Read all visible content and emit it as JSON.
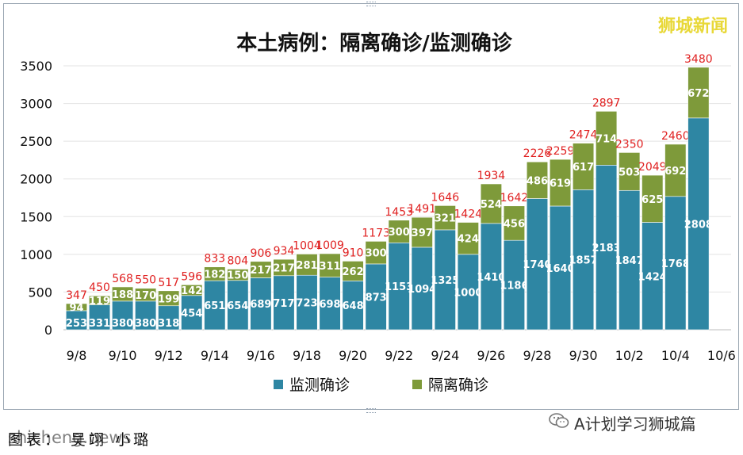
{
  "chart_data": {
    "type": "bar",
    "stacked": true,
    "title": "本土病例：隔离确诊/监测确诊",
    "categories": [
      "9/8",
      "9/9",
      "9/10",
      "9/11",
      "9/12",
      "9/13",
      "9/14",
      "9/15",
      "9/16",
      "9/17",
      "9/18",
      "9/19",
      "9/20",
      "9/21",
      "9/22",
      "9/23",
      "9/24",
      "9/25",
      "9/26",
      "9/27",
      "9/28",
      "9/29",
      "9/30",
      "10/1",
      "10/2",
      "10/3",
      "10/4",
      "10/5"
    ],
    "x_tick_labels": [
      "9/8",
      "9/10",
      "9/12",
      "9/14",
      "9/16",
      "9/18",
      "9/20",
      "9/22",
      "9/24",
      "9/26",
      "9/28",
      "9/30",
      "10/2",
      "10/4",
      "10/6"
    ],
    "series": [
      {
        "name": "监测确诊",
        "color": "#2e86a3",
        "values": [
          253,
          331,
          380,
          380,
          318,
          454,
          651,
          654,
          689,
          717,
          723,
          698,
          648,
          873,
          1153,
          1094,
          1325,
          1000,
          1410,
          1186,
          1740,
          1640,
          1857,
          2183,
          1847,
          1424,
          1768,
          2808
        ]
      },
      {
        "name": "隔离确诊",
        "color": "#7e9a3a",
        "values": [
          94,
          119,
          188,
          170,
          199,
          142,
          182,
          150,
          217,
          217,
          281,
          311,
          262,
          300,
          300,
          397,
          321,
          424,
          524,
          456,
          486,
          619,
          617,
          714,
          503,
          625,
          692,
          672
        ]
      }
    ],
    "totals": [
      347,
      450,
      568,
      550,
      517,
      596,
      833,
      804,
      906,
      934,
      1004,
      1009,
      910,
      1173,
      1453,
      1491,
      1646,
      1424,
      1934,
      1642,
      2226,
      2259,
      2474,
      2897,
      2350,
      2049,
      2460,
      3480
    ],
    "ylim": [
      0,
      3500
    ],
    "y_ticks": [
      0,
      500,
      1000,
      1500,
      2000,
      2500,
      3000,
      3500
    ],
    "legend_position": "bottom",
    "grid": true,
    "total_label_color": "#e02020"
  },
  "watermarks": {
    "top_right": "狮城新闻",
    "bottom_left_caption": "图表：   吴翊 小璐",
    "bottom_left_site": "shicheng.news",
    "wechat_account": "A计划学习狮城篇"
  },
  "icons": {
    "wechat": "wechat-icon"
  }
}
